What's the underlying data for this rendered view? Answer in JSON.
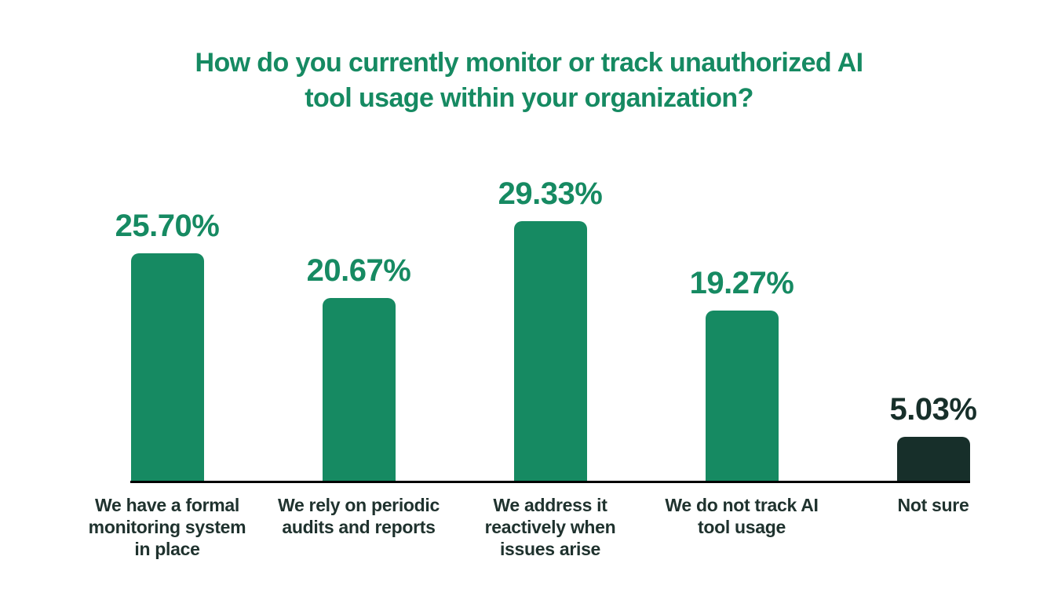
{
  "page": {
    "background": "#ffffff"
  },
  "header": {
    "title_line1": "How do you currently monitor or track unauthorized AI",
    "title_line2": "tool usage within your organization?",
    "title_color": "#168a62"
  },
  "chart_data": {
    "type": "bar",
    "title": "How do you currently monitor or track unauthorized AI tool usage within your organization?",
    "categories": [
      "We have a formal monitoring system in place",
      "We rely on periodic audits and reports",
      "We address it reactively when issues arise",
      "We do not track AI tool usage",
      "Not sure"
    ],
    "values": [
      25.7,
      20.67,
      29.33,
      19.27,
      5.03
    ],
    "value_labels": [
      "25.70%",
      "20.67%",
      "29.33%",
      "19.27%",
      "5.03%"
    ],
    "bar_colors": [
      "#168a62",
      "#168a62",
      "#168a62",
      "#168a62",
      "#172f2a"
    ],
    "value_label_colors": [
      "#168a62",
      "#168a62",
      "#168a62",
      "#168a62",
      "#172f2a"
    ],
    "xlabel": "",
    "ylabel": "",
    "ylim": [
      0,
      32
    ],
    "unit": "%",
    "grid": false,
    "legend": false,
    "baseline_axis": true,
    "axis_color": "#000000",
    "category_label_color": "#1f322e"
  }
}
